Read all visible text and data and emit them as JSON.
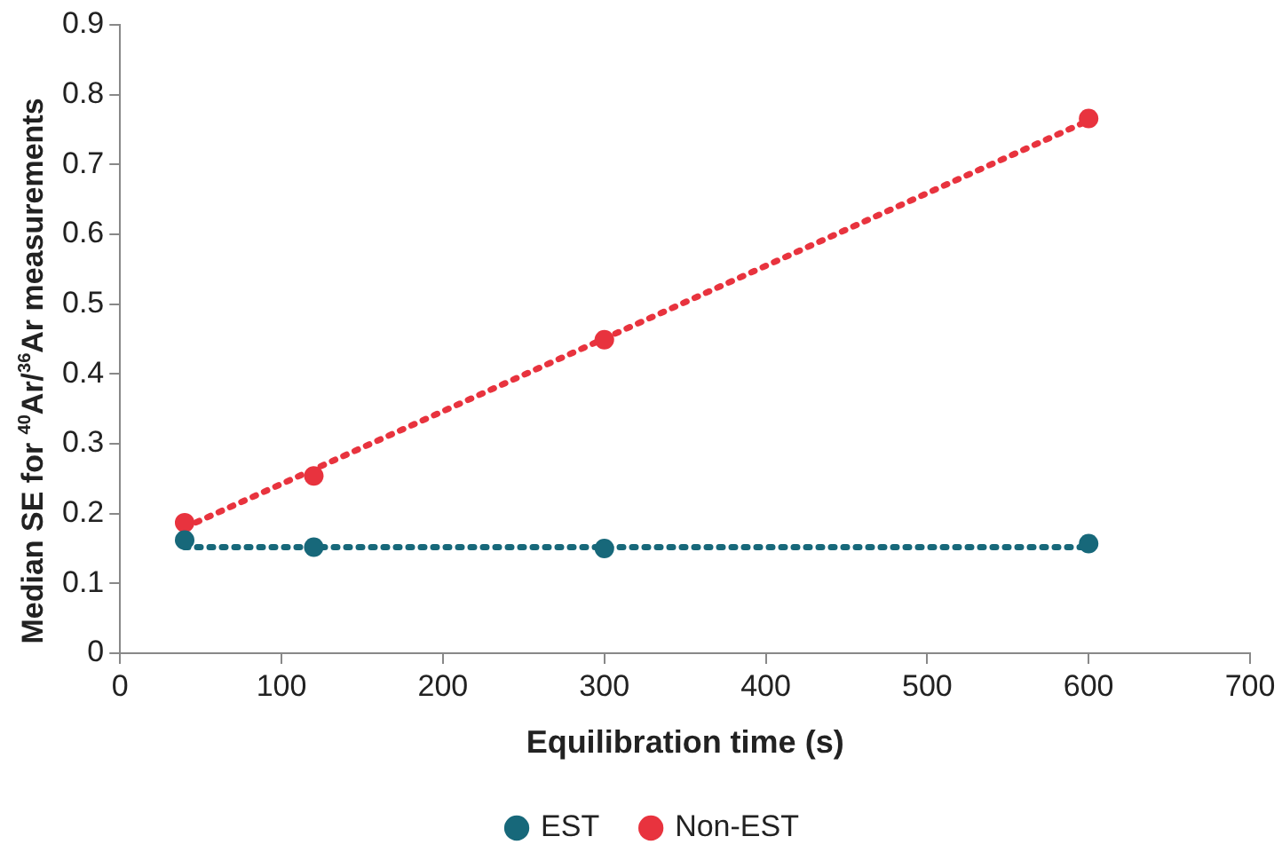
{
  "chart_data": {
    "type": "scatter",
    "xlabel": "Equilibration time (s)",
    "ylabel": "Median SE for $^{40}$Ar/$^{36}$Ar measurements",
    "xlim": [
      0,
      700
    ],
    "xticks": [
      0,
      100,
      200,
      300,
      400,
      500,
      600,
      700
    ],
    "ylim": [
      0,
      0.9
    ],
    "yticks": [
      0,
      0.1,
      0.2,
      0.3,
      0.4,
      0.5,
      0.6,
      0.7,
      0.8,
      0.9
    ],
    "grid": false,
    "legend": "bottom",
    "marker": "circle",
    "series": [
      {
        "name": "EST",
        "color": "#17687a",
        "x": [
          40,
          120,
          300,
          600
        ],
        "values": [
          0.162,
          0.152,
          0.15,
          0.157
        ]
      },
      {
        "name": "Non-EST",
        "color": "#e8333e",
        "x": [
          40,
          120,
          300,
          600
        ],
        "values": [
          0.187,
          0.254,
          0.449,
          0.766
        ]
      },
      {
        "type": "line",
        "color": "#17687a",
        "line_style": "dotted",
        "marker": "none",
        "x": [
          40,
          600
        ],
        "values": [
          0.152,
          0.152
        ]
      },
      {
        "type": "line",
        "color": "#e8333e",
        "line_style": "dotted",
        "marker": "none",
        "x": [
          40,
          600
        ],
        "values": [
          0.18,
          0.763
        ]
      }
    ]
  }
}
